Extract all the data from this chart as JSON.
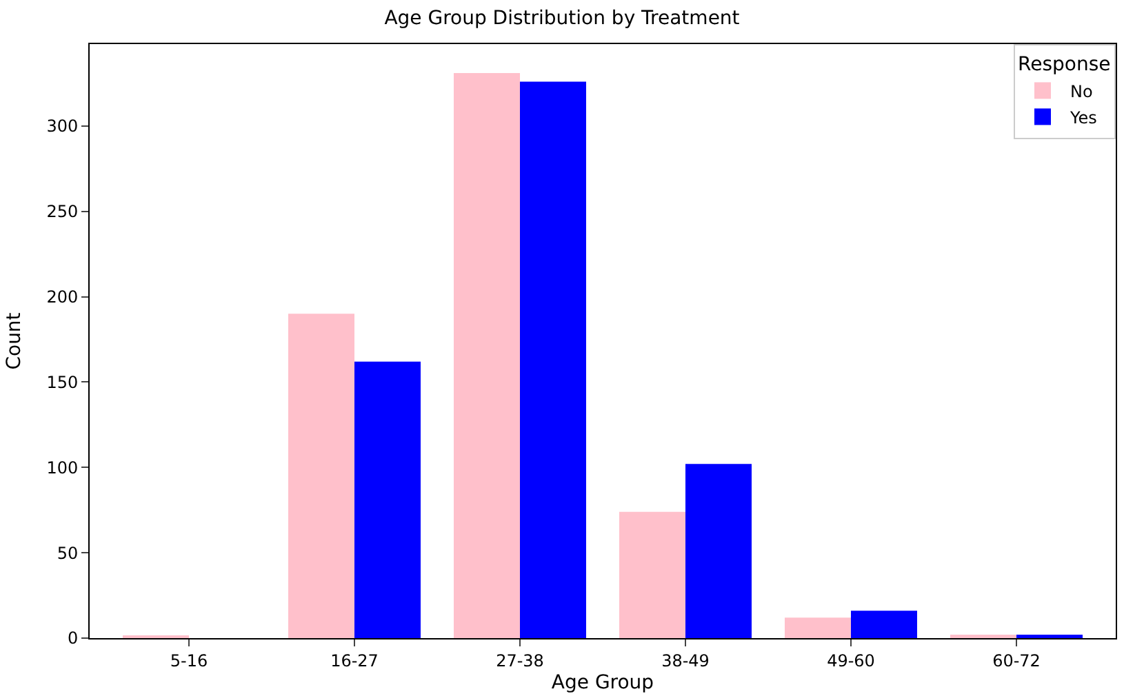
{
  "chart_data": {
    "type": "bar",
    "title": "Age Group Distribution by Treatment",
    "xlabel": "Age Group",
    "ylabel": "Count",
    "legend_title": "Response",
    "categories": [
      "5-16",
      "16-27",
      "27-38",
      "38-49",
      "49-60",
      "60-72"
    ],
    "series": [
      {
        "name": "No",
        "color": "#ffc0cb",
        "values": [
          1,
          190,
          331,
          74,
          12,
          2
        ]
      },
      {
        "name": "Yes",
        "color": "#0000ff",
        "values": [
          0,
          162,
          326,
          102,
          16,
          2
        ]
      }
    ],
    "ylim": [
      0,
      348
    ],
    "yticks": [
      0,
      50,
      100,
      150,
      200,
      250,
      300
    ],
    "legend": "top right"
  }
}
